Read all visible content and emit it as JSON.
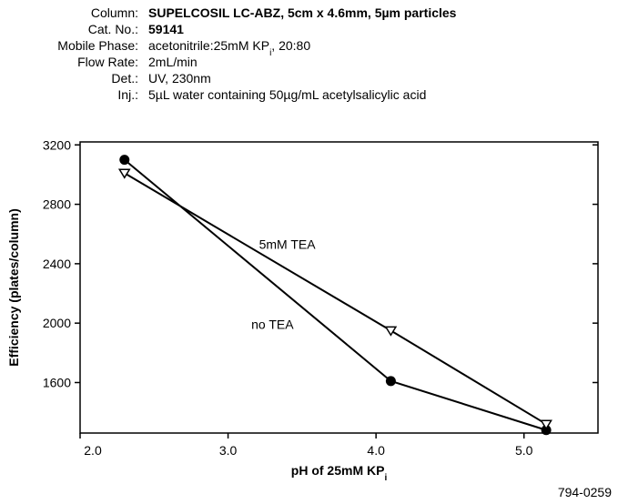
{
  "header": {
    "rows": [
      {
        "label": "Column:",
        "value": [
          "SUPELCOSIL LC-ABZ, 5cm x 4.6mm, 5µm particles"
        ],
        "bold": true
      },
      {
        "label": "Cat. No.:",
        "value": [
          "59141"
        ],
        "bold": true
      },
      {
        "label": "Mobile Phase:",
        "value": [
          "acetonitrile:25mM KP",
          "i",
          ", 20:80"
        ]
      },
      {
        "label": "Flow Rate:",
        "value": [
          "2mL/min"
        ]
      },
      {
        "label": "Det.:",
        "value": [
          "UV, 230nm"
        ]
      },
      {
        "label": "Inj.:",
        "value": [
          "5µL water containing 50µg/mL acetylsalicylic acid"
        ]
      }
    ]
  },
  "chart_data": {
    "type": "line",
    "x_label": [
      "pH of 25mM KP",
      "i"
    ],
    "y_label": "Efficiency (plates/column)",
    "xlim": [
      2.0,
      5.5
    ],
    "xticks": [
      {
        "value": 2,
        "label": "2.0"
      },
      {
        "value": 3,
        "label": "3.0"
      },
      {
        "value": 4,
        "label": "4.0"
      },
      {
        "value": 5,
        "label": "5.0"
      }
    ],
    "ylim": [
      1260,
      3220
    ],
    "yticks": [
      1600,
      2000,
      2400,
      2800,
      3200
    ],
    "series": [
      {
        "name": "no TEA",
        "color": "#000000",
        "marker": "circle",
        "x": [
          2.3,
          4.1,
          5.15
        ],
        "values": [
          3100,
          1610,
          1280
        ]
      },
      {
        "name": "5mM TEA",
        "color": "#000000",
        "marker": "triangle-down",
        "x": [
          2.3,
          4.1,
          5.15
        ],
        "values": [
          3010,
          1950,
          1320
        ]
      }
    ]
  },
  "footer": "794-0259"
}
